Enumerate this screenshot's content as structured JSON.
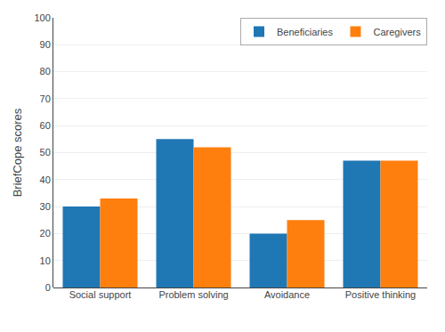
{
  "chart_data": {
    "type": "bar",
    "categories": [
      "Social support",
      "Problem solving",
      "Avoidance",
      "Positive thinking"
    ],
    "series": [
      {
        "name": "Beneficiaries",
        "values": [
          30,
          55,
          20,
          47
        ]
      },
      {
        "name": "Caregivers",
        "values": [
          33,
          52,
          25,
          47
        ]
      }
    ],
    "ylabel": "BriefCope scores",
    "ylim": [
      0,
      100
    ],
    "yticks": [
      0,
      10,
      20,
      30,
      40,
      50,
      60,
      70,
      80,
      90,
      100
    ],
    "grid": true,
    "legend": "upper right"
  }
}
